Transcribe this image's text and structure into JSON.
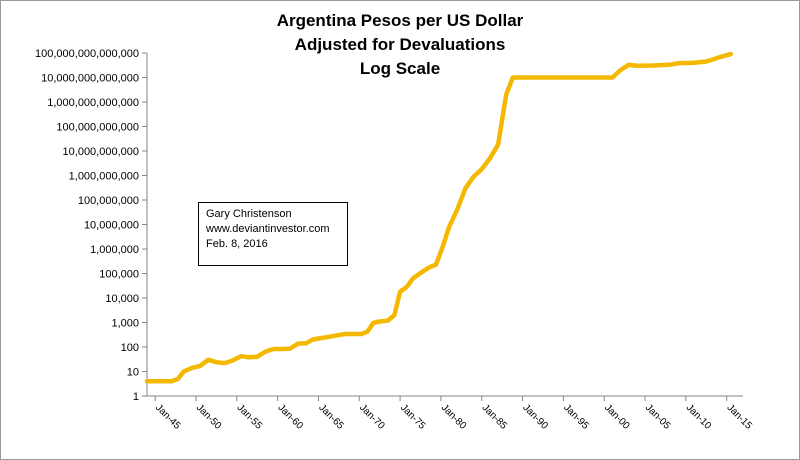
{
  "chart_data": {
    "type": "line",
    "title_lines": [
      "Argentina Pesos per US Dollar",
      "Adjusted for Devaluations",
      "Log Scale"
    ],
    "yscale": "log",
    "ylim": [
      1,
      100000000000000
    ],
    "y_ticks": [
      {
        "value": 1,
        "label": "1"
      },
      {
        "value": 10,
        "label": "10"
      },
      {
        "value": 100,
        "label": "100"
      },
      {
        "value": 1000,
        "label": "1,000"
      },
      {
        "value": 10000,
        "label": "10,000"
      },
      {
        "value": 100000,
        "label": "100,000"
      },
      {
        "value": 1000000,
        "label": "1,000,000"
      },
      {
        "value": 10000000,
        "label": "10,000,000"
      },
      {
        "value": 100000000,
        "label": "100,000,000"
      },
      {
        "value": 1000000000,
        "label": "1,000,000,000"
      },
      {
        "value": 10000000000,
        "label": "10,000,000,000"
      },
      {
        "value": 100000000000,
        "label": "100,000,000,000"
      },
      {
        "value": 1000000000000,
        "label": "1,000,000,000,000"
      },
      {
        "value": 10000000000000,
        "label": "10,000,000,000,000"
      },
      {
        "value": 100000000000000,
        "label": "100,000,000,000,000"
      }
    ],
    "xlim": [
      1944,
      2017
    ],
    "x_ticks": [
      {
        "year": 1945,
        "label": "Jan-45"
      },
      {
        "year": 1950,
        "label": "Jan-50"
      },
      {
        "year": 1955,
        "label": "Jan-55"
      },
      {
        "year": 1960,
        "label": "Jan-60"
      },
      {
        "year": 1965,
        "label": "Jan-65"
      },
      {
        "year": 1970,
        "label": "Jan-70"
      },
      {
        "year": 1975,
        "label": "Jan-75"
      },
      {
        "year": 1980,
        "label": "Jan-80"
      },
      {
        "year": 1985,
        "label": "Jan-85"
      },
      {
        "year": 1990,
        "label": "Jan-90"
      },
      {
        "year": 1995,
        "label": "Jan-95"
      },
      {
        "year": 2000,
        "label": "Jan-00"
      },
      {
        "year": 2005,
        "label": "Jan-05"
      },
      {
        "year": 2010,
        "label": "Jan-10"
      },
      {
        "year": 2015,
        "label": "Jan-15"
      }
    ],
    "grid": false,
    "legend": "none",
    "series": [
      {
        "color": "#f5b800",
        "points": [
          [
            1944.0,
            4
          ],
          [
            1947.0,
            4
          ],
          [
            1947.8,
            5
          ],
          [
            1948.5,
            10
          ],
          [
            1949.5,
            14
          ],
          [
            1950.5,
            17
          ],
          [
            1951.5,
            30
          ],
          [
            1952.5,
            24
          ],
          [
            1953.5,
            22
          ],
          [
            1954.5,
            28
          ],
          [
            1955.5,
            42
          ],
          [
            1956.5,
            38
          ],
          [
            1957.5,
            40
          ],
          [
            1958.5,
            65
          ],
          [
            1959.5,
            83
          ],
          [
            1960.5,
            83
          ],
          [
            1961.5,
            85
          ],
          [
            1962.5,
            138
          ],
          [
            1963.5,
            142
          ],
          [
            1964.3,
            200
          ],
          [
            1965.3,
            230
          ],
          [
            1966.3,
            260
          ],
          [
            1967.3,
            300
          ],
          [
            1968.3,
            340
          ],
          [
            1969.3,
            340
          ],
          [
            1970.3,
            340
          ],
          [
            1971.0,
            420
          ],
          [
            1971.7,
            950
          ],
          [
            1972.5,
            1100
          ],
          [
            1973.5,
            1200
          ],
          [
            1974.3,
            2000
          ],
          [
            1975.0,
            18000
          ],
          [
            1975.8,
            28000
          ],
          [
            1976.6,
            65000
          ],
          [
            1977.6,
            110000
          ],
          [
            1978.6,
            180000
          ],
          [
            1979.4,
            230000
          ],
          [
            1980.2,
            1200000
          ],
          [
            1981.0,
            8000000
          ],
          [
            1982.0,
            40000000
          ],
          [
            1983.0,
            300000000
          ],
          [
            1984.0,
            900000000
          ],
          [
            1985.0,
            1800000000
          ],
          [
            1986.0,
            5000000000
          ],
          [
            1987.0,
            18000000000
          ],
          [
            1988.0,
            2000000000000
          ],
          [
            1988.8,
            10000000000000
          ],
          [
            1990.0,
            10000000000000
          ],
          [
            1995.0,
            10000000000000
          ],
          [
            2000.0,
            10000000000000
          ],
          [
            2001.0,
            10000000000000
          ],
          [
            2002.0,
            20000000000000
          ],
          [
            2003.0,
            33000000000000
          ],
          [
            2004.0,
            30000000000000
          ],
          [
            2006.0,
            31000000000000
          ],
          [
            2008.0,
            33000000000000
          ],
          [
            2009.0,
            38000000000000
          ],
          [
            2011.0,
            40000000000000
          ],
          [
            2012.5,
            45000000000000
          ],
          [
            2014.0,
            65000000000000
          ],
          [
            2015.5,
            90000000000000
          ]
        ]
      }
    ]
  },
  "annotation": {
    "lines": [
      "Gary Christenson",
      "www.deviantinvestor.com",
      "Feb. 8, 2016"
    ]
  }
}
